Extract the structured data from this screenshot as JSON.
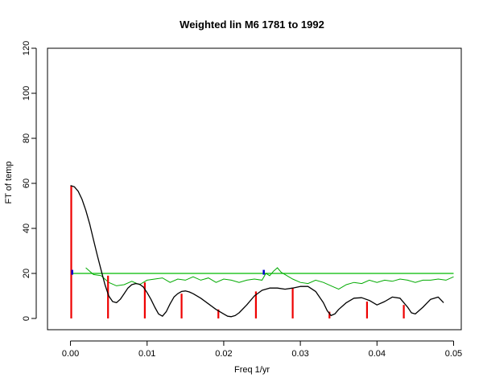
{
  "chart_data": {
    "type": "line",
    "title": "Weighted lin M6 1781 to 1992",
    "xlabel": "Freq 1/yr",
    "ylabel": "FT of temp",
    "xlim": [
      -0.003,
      0.051
    ],
    "ylim": [
      -5,
      120
    ],
    "x_ticks": [
      0.0,
      0.01,
      0.02,
      0.03,
      0.04,
      0.05
    ],
    "x_tick_labels": [
      "0.00",
      "0.01",
      "0.02",
      "0.03",
      "0.04",
      "0.05"
    ],
    "y_ticks": [
      0,
      20,
      40,
      60,
      80,
      100,
      120
    ],
    "y_tick_labels": [
      "0",
      "20",
      "40",
      "60",
      "80",
      "100",
      "120"
    ],
    "grid": false,
    "colors": {
      "ft_curve": "#000000",
      "noise_curve": "#00aa00",
      "threshold": "#00bb00",
      "spikes": "#ee0000",
      "markers": "#0000cc"
    },
    "threshold_level": 20,
    "ft_curve": {
      "x": [
        0.0,
        0.0005,
        0.001,
        0.0015,
        0.002,
        0.0025,
        0.003,
        0.0035,
        0.004,
        0.0045,
        0.005,
        0.0055,
        0.006,
        0.0065,
        0.007,
        0.0075,
        0.008,
        0.0085,
        0.009,
        0.0095,
        0.01,
        0.0105,
        0.011,
        0.0115,
        0.012,
        0.0125,
        0.013,
        0.0135,
        0.014,
        0.0145,
        0.015,
        0.0155,
        0.016,
        0.017,
        0.018,
        0.019,
        0.02,
        0.0205,
        0.021,
        0.0215,
        0.022,
        0.023,
        0.024,
        0.025,
        0.026,
        0.027,
        0.028,
        0.029,
        0.03,
        0.031,
        0.032,
        0.033,
        0.0335,
        0.034,
        0.0345,
        0.035,
        0.036,
        0.037,
        0.038,
        0.039,
        0.04,
        0.041,
        0.042,
        0.043,
        0.044,
        0.0445,
        0.045,
        0.046,
        0.047,
        0.048,
        0.0487
      ],
      "y": [
        59,
        58.5,
        56.5,
        53,
        48,
        42,
        35,
        28,
        21.5,
        15,
        10,
        7.5,
        7,
        8.5,
        11,
        13.5,
        15,
        15.5,
        15.2,
        14,
        11.5,
        8.5,
        5,
        2,
        1,
        3,
        6.5,
        9.5,
        11,
        12,
        12.2,
        11.8,
        11,
        9,
        6.5,
        4,
        2,
        1,
        0.8,
        1.3,
        2.5,
        6,
        10,
        12.5,
        13.5,
        13.5,
        13,
        13.5,
        14.2,
        14.2,
        12,
        7,
        3.5,
        1.3,
        2,
        4,
        7,
        9,
        9.2,
        8,
        6,
        7.5,
        9.5,
        9,
        5,
        2.5,
        2,
        5,
        8.5,
        9.5,
        7
      ]
    },
    "noise_curve": {
      "x": [
        0.002,
        0.003,
        0.004,
        0.005,
        0.006,
        0.007,
        0.008,
        0.009,
        0.01,
        0.011,
        0.012,
        0.013,
        0.014,
        0.015,
        0.016,
        0.017,
        0.018,
        0.019,
        0.02,
        0.021,
        0.022,
        0.023,
        0.024,
        0.025,
        0.0255,
        0.026,
        0.0265,
        0.027,
        0.0275,
        0.028,
        0.029,
        0.03,
        0.031,
        0.032,
        0.033,
        0.034,
        0.035,
        0.036,
        0.037,
        0.038,
        0.039,
        0.04,
        0.041,
        0.042,
        0.043,
        0.044,
        0.045,
        0.046,
        0.047,
        0.048,
        0.049,
        0.05
      ],
      "y": [
        22.5,
        19.5,
        19,
        16,
        14.5,
        15,
        16.5,
        15,
        17,
        17.5,
        18,
        16,
        17.5,
        17,
        18.5,
        17,
        18,
        16,
        17.5,
        17,
        16,
        17,
        17.5,
        17,
        20,
        19,
        21,
        22.5,
        20.5,
        19.5,
        17.5,
        16,
        15.5,
        17,
        16,
        14.5,
        13,
        15,
        16,
        15.5,
        17,
        16,
        17,
        16.5,
        17.5,
        17,
        16,
        17,
        17,
        17.5,
        17,
        18.5
      ]
    },
    "spikes": {
      "x": [
        0.0001,
        0.0049,
        0.0097,
        0.0145,
        0.0193,
        0.0242,
        0.029,
        0.0338,
        0.0387,
        0.0435
      ],
      "y": [
        59,
        19,
        16,
        11,
        4,
        12,
        13.5,
        3,
        7.5,
        6
      ]
    },
    "markers": {
      "x": [
        0.0002,
        0.0252
      ],
      "y": [
        20.5,
        20.5
      ]
    }
  }
}
